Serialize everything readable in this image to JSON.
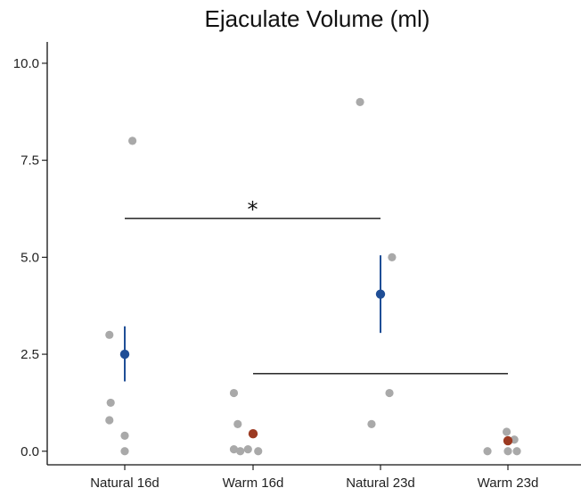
{
  "chart_data": {
    "type": "scatter",
    "title": "Ejaculate Volume (ml)",
    "xlabel": "",
    "ylabel": "",
    "categories": [
      "Natural 16d",
      "Warm 16d",
      "Natural 23d",
      "Warm 23d"
    ],
    "ylim": [
      -0.35,
      10.55
    ],
    "yticks": [
      0.0,
      2.5,
      5.0,
      7.5,
      10.0
    ],
    "ytick_labels": [
      "0.0",
      "2.5",
      "5.0",
      "7.5",
      "10.0"
    ],
    "grid": false,
    "raw_points": [
      {
        "category": "Natural 16d",
        "offset": 0.06,
        "y": 8.0
      },
      {
        "category": "Natural 16d",
        "offset": -0.12,
        "y": 3.0
      },
      {
        "category": "Natural 16d",
        "offset": -0.11,
        "y": 1.25
      },
      {
        "category": "Natural 16d",
        "offset": -0.12,
        "y": 0.8
      },
      {
        "category": "Natural 16d",
        "offset": 0.0,
        "y": 0.4
      },
      {
        "category": "Natural 16d",
        "offset": 0.0,
        "y": 0.0
      },
      {
        "category": "Warm 16d",
        "offset": -0.15,
        "y": 1.5
      },
      {
        "category": "Warm 16d",
        "offset": -0.12,
        "y": 0.7
      },
      {
        "category": "Warm 16d",
        "offset": -0.15,
        "y": 0.05
      },
      {
        "category": "Warm 16d",
        "offset": -0.1,
        "y": 0.0
      },
      {
        "category": "Warm 16d",
        "offset": -0.04,
        "y": 0.05
      },
      {
        "category": "Warm 16d",
        "offset": 0.04,
        "y": 0.0
      },
      {
        "category": "Warm 16d",
        "offset": 0.0,
        "y": 0.45
      },
      {
        "category": "Natural 23d",
        "offset": -0.16,
        "y": 9.0
      },
      {
        "category": "Natural 23d",
        "offset": 0.09,
        "y": 5.0
      },
      {
        "category": "Natural 23d",
        "offset": 0.07,
        "y": 1.5
      },
      {
        "category": "Natural 23d",
        "offset": -0.07,
        "y": 0.7
      },
      {
        "category": "Warm 23d",
        "offset": -0.16,
        "y": 0.0
      },
      {
        "category": "Warm 23d",
        "offset": -0.01,
        "y": 0.5
      },
      {
        "category": "Warm 23d",
        "offset": 0.0,
        "y": 0.0
      },
      {
        "category": "Warm 23d",
        "offset": 0.05,
        "y": 0.3
      },
      {
        "category": "Warm 23d",
        "offset": 0.07,
        "y": 0.0
      }
    ],
    "summary": [
      {
        "category": "Natural 16d",
        "mean": 2.5,
        "low": 1.8,
        "high": 3.22,
        "color": "#1f4e96"
      },
      {
        "category": "Warm 16d",
        "mean": 0.45,
        "low": 0.38,
        "high": 0.52,
        "color": "#9c3a22"
      },
      {
        "category": "Natural 23d",
        "mean": 4.05,
        "low": 3.05,
        "high": 5.05,
        "color": "#1f4e96"
      },
      {
        "category": "Warm 23d",
        "mean": 0.27,
        "low": 0.18,
        "high": 0.36,
        "color": "#9c3a22"
      }
    ],
    "significance": [
      {
        "from": "Natural 16d",
        "to": "Natural 23d",
        "y": 6.0,
        "label": "*"
      },
      {
        "from": "Warm 16d",
        "to": "Warm 23d",
        "y": 2.0,
        "label": ""
      }
    ],
    "raw_point_color": "#a9a9a9"
  }
}
